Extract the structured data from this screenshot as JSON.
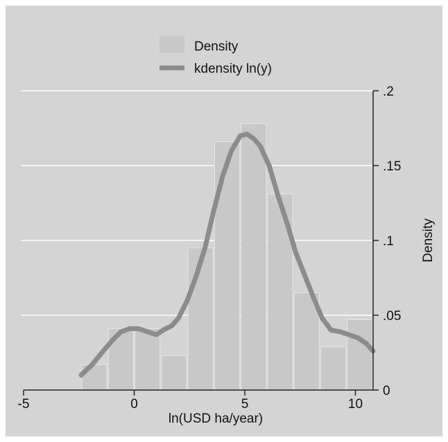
{
  "chart_data": {
    "type": "bar",
    "subtype": "histogram-with-kernel-density",
    "xlabel": "ln(USD ha/year)",
    "ylabel": "Density",
    "xlim": [
      -5,
      10.8
    ],
    "ylim": [
      0,
      0.2
    ],
    "x_ticks": [
      -5,
      0,
      5,
      10
    ],
    "x_tick_labels": [
      "-5",
      "0",
      "5",
      "10"
    ],
    "y_ticks": [
      0,
      0.05,
      0.1,
      0.15,
      0.2
    ],
    "y_tick_labels": [
      "0",
      ".05",
      ".1",
      ".15",
      ".2"
    ],
    "y_axis_side": "right",
    "grid": true,
    "legend_position": "top-center",
    "series": [
      {
        "name": "Density",
        "kind": "histogram",
        "color": "#c8c8c8",
        "bins": [
          {
            "x0": -2.4,
            "x1": -1.2,
            "value": 0.017
          },
          {
            "x0": -1.2,
            "x1": 0.0,
            "value": 0.041
          },
          {
            "x0": 0.0,
            "x1": 1.2,
            "value": 0.041
          },
          {
            "x0": 1.2,
            "x1": 2.4,
            "value": 0.023
          },
          {
            "x0": 2.4,
            "x1": 3.6,
            "value": 0.095
          },
          {
            "x0": 3.6,
            "x1": 4.8,
            "value": 0.166
          },
          {
            "x0": 4.8,
            "x1": 6.0,
            "value": 0.178
          },
          {
            "x0": 6.0,
            "x1": 7.2,
            "value": 0.131
          },
          {
            "x0": 7.2,
            "x1": 8.4,
            "value": 0.065
          },
          {
            "x0": 8.4,
            "x1": 9.6,
            "value": 0.029
          },
          {
            "x0": 9.6,
            "x1": 10.8,
            "value": 0.047
          }
        ]
      },
      {
        "name": "kdensity ln(y)",
        "kind": "line",
        "color": "#8c8c8c",
        "points": [
          [
            -2.4,
            0.01
          ],
          [
            -1.9,
            0.017
          ],
          [
            -1.4,
            0.026
          ],
          [
            -1.0,
            0.033
          ],
          [
            -0.6,
            0.039
          ],
          [
            -0.2,
            0.041
          ],
          [
            0.2,
            0.041
          ],
          [
            0.6,
            0.039
          ],
          [
            1.0,
            0.037
          ],
          [
            1.3,
            0.04
          ],
          [
            1.7,
            0.043
          ],
          [
            2.0,
            0.048
          ],
          [
            2.4,
            0.06
          ],
          [
            2.8,
            0.076
          ],
          [
            3.2,
            0.095
          ],
          [
            3.6,
            0.12
          ],
          [
            4.0,
            0.143
          ],
          [
            4.4,
            0.16
          ],
          [
            4.8,
            0.17
          ],
          [
            5.1,
            0.171
          ],
          [
            5.4,
            0.168
          ],
          [
            5.7,
            0.163
          ],
          [
            6.1,
            0.15
          ],
          [
            6.5,
            0.13
          ],
          [
            6.9,
            0.112
          ],
          [
            7.3,
            0.092
          ],
          [
            7.7,
            0.077
          ],
          [
            8.1,
            0.062
          ],
          [
            8.5,
            0.048
          ],
          [
            8.9,
            0.04
          ],
          [
            9.3,
            0.039
          ],
          [
            9.7,
            0.037
          ],
          [
            10.1,
            0.035
          ],
          [
            10.5,
            0.031
          ],
          [
            10.8,
            0.026
          ]
        ]
      }
    ]
  }
}
